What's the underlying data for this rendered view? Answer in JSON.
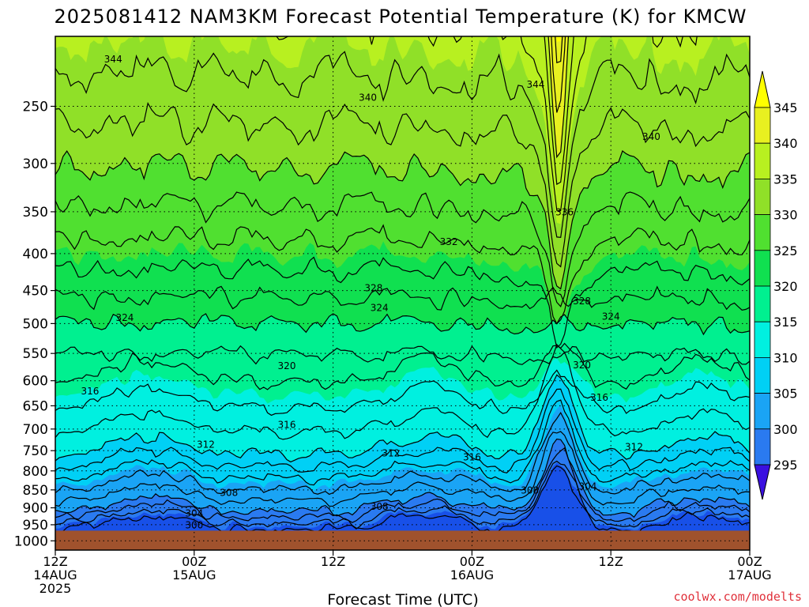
{
  "title": "2025081412 NAM3KM Forecast Potential Temperature (K) for KMCW",
  "credit": "coolwx.com/modelts",
  "colors": {
    "ground": "#a0522d",
    "credit": "#e0303a",
    "bands": [
      "#3a10e0",
      "#1a30f0",
      "#1850e8",
      "#2a7af0",
      "#1aa4f5",
      "#00d0f5",
      "#00f0e0",
      "#00f090",
      "#10e050",
      "#50e030",
      "#90e028",
      "#b8f020",
      "#e8f020",
      "#ffff00"
    ]
  },
  "chart_data": {
    "type": "contour-time-height",
    "title": "2025081412 NAM3KM Forecast Potential Temperature (K) for KMCW",
    "xlabel": "Forecast Time (UTC)",
    "ylabel": "",
    "x_tick_labels": [
      {
        "hour": 0,
        "line1": "12Z",
        "line2": "14AUG",
        "line3": "2025"
      },
      {
        "hour": 12,
        "line1": "00Z",
        "line2": "15AUG",
        "line3": ""
      },
      {
        "hour": 24,
        "line1": "12Z",
        "line2": "",
        "line3": ""
      },
      {
        "hour": 36,
        "line1": "00Z",
        "line2": "16AUG",
        "line3": ""
      },
      {
        "hour": 48,
        "line1": "12Z",
        "line2": "",
        "line3": ""
      },
      {
        "hour": 60,
        "line1": "00Z",
        "line2": "17AUG",
        "line3": ""
      }
    ],
    "xlim": [
      0,
      60
    ],
    "y_tick_labels": [
      "250",
      "300",
      "350",
      "400",
      "450",
      "500",
      "550",
      "600",
      "650",
      "700",
      "750",
      "800",
      "850",
      "900",
      "950",
      "1000"
    ],
    "y_ticks": [
      250,
      300,
      350,
      400,
      450,
      500,
      550,
      600,
      650,
      700,
      750,
      800,
      850,
      900,
      950,
      1000
    ],
    "ylim": [
      200,
      1030
    ],
    "y_scale": "log-pressure",
    "surface_pressure": 968,
    "colorbar": {
      "levels": [
        295,
        300,
        305,
        310,
        315,
        320,
        325,
        330,
        335,
        340,
        345
      ],
      "labels": [
        "295",
        "300",
        "305",
        "310",
        "315",
        "320",
        "325",
        "330",
        "335",
        "340",
        "345"
      ]
    },
    "contour_interval": 2,
    "contour_labels": [
      {
        "text": "344",
        "hour": 5,
        "p": 215
      },
      {
        "text": "340",
        "hour": 27,
        "p": 243
      },
      {
        "text": "344",
        "hour": 41.5,
        "p": 233
      },
      {
        "text": "340",
        "hour": 51.5,
        "p": 275
      },
      {
        "text": "336",
        "hour": 44,
        "p": 350
      },
      {
        "text": "332",
        "hour": 34,
        "p": 385
      },
      {
        "text": "328",
        "hour": 27.5,
        "p": 446
      },
      {
        "text": "328",
        "hour": 45.5,
        "p": 465
      },
      {
        "text": "324",
        "hour": 6,
        "p": 490
      },
      {
        "text": "324",
        "hour": 28,
        "p": 475
      },
      {
        "text": "324",
        "hour": 48,
        "p": 488
      },
      {
        "text": "320",
        "hour": 20,
        "p": 572
      },
      {
        "text": "320",
        "hour": 45.5,
        "p": 570
      },
      {
        "text": "316",
        "hour": 3,
        "p": 620
      },
      {
        "text": "316",
        "hour": 47,
        "p": 632
      },
      {
        "text": "316",
        "hour": 20,
        "p": 690
      },
      {
        "text": "316",
        "hour": 36,
        "p": 765
      },
      {
        "text": "312",
        "hour": 13,
        "p": 735
      },
      {
        "text": "312",
        "hour": 29,
        "p": 755
      },
      {
        "text": "312",
        "hour": 50,
        "p": 740
      },
      {
        "text": "308",
        "hour": 15,
        "p": 857
      },
      {
        "text": "308",
        "hour": 28,
        "p": 895
      },
      {
        "text": "308",
        "hour": 41,
        "p": 850
      },
      {
        "text": "304",
        "hour": 12,
        "p": 915
      },
      {
        "text": "304",
        "hour": 46,
        "p": 840
      },
      {
        "text": "300",
        "hour": 12,
        "p": 950
      }
    ]
  }
}
